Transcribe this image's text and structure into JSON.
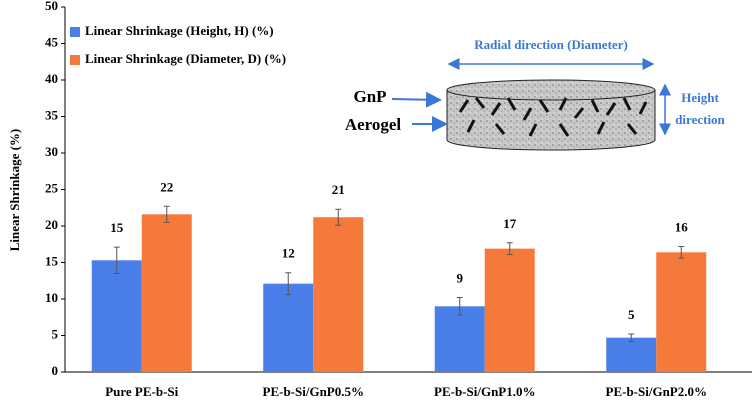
{
  "chart_data": {
    "type": "bar",
    "y_label": "Linear Shrinkage (%)",
    "categories": [
      "Pure PE-b-Si",
      "PE-b-Si/GnP0.5%",
      "PE-b-Si/GnP1.0%",
      "PE-b-Si/GnP2.0%"
    ],
    "series": [
      {
        "name": "Linear Shrinkage (Height, H) (%)",
        "color": "#4a7ee8",
        "values": [
          15.3,
          12.1,
          9.0,
          4.7
        ],
        "errors": [
          1.8,
          1.5,
          1.2,
          0.5
        ],
        "value_labels": [
          "15",
          "12",
          "9",
          "5"
        ]
      },
      {
        "name": "Linear Shrinkage (Diameter, D) (%)",
        "color": "#f5793a",
        "values": [
          21.6,
          21.2,
          16.9,
          16.4
        ],
        "errors": [
          1.1,
          1.1,
          0.8,
          0.8
        ],
        "value_labels": [
          "22",
          "21",
          "17",
          "16"
        ]
      }
    ],
    "ylim": [
      0,
      50
    ],
    "yticks": [
      0,
      5,
      10,
      15,
      20,
      25,
      30,
      35,
      40,
      45,
      50
    ],
    "legend": "upper left",
    "inset": {
      "radial_label": "Radial direction (Diameter)",
      "gnp_label": "GnP",
      "aerogel_label": "Aerogel",
      "height_label": [
        "Height",
        "direction"
      ]
    }
  }
}
